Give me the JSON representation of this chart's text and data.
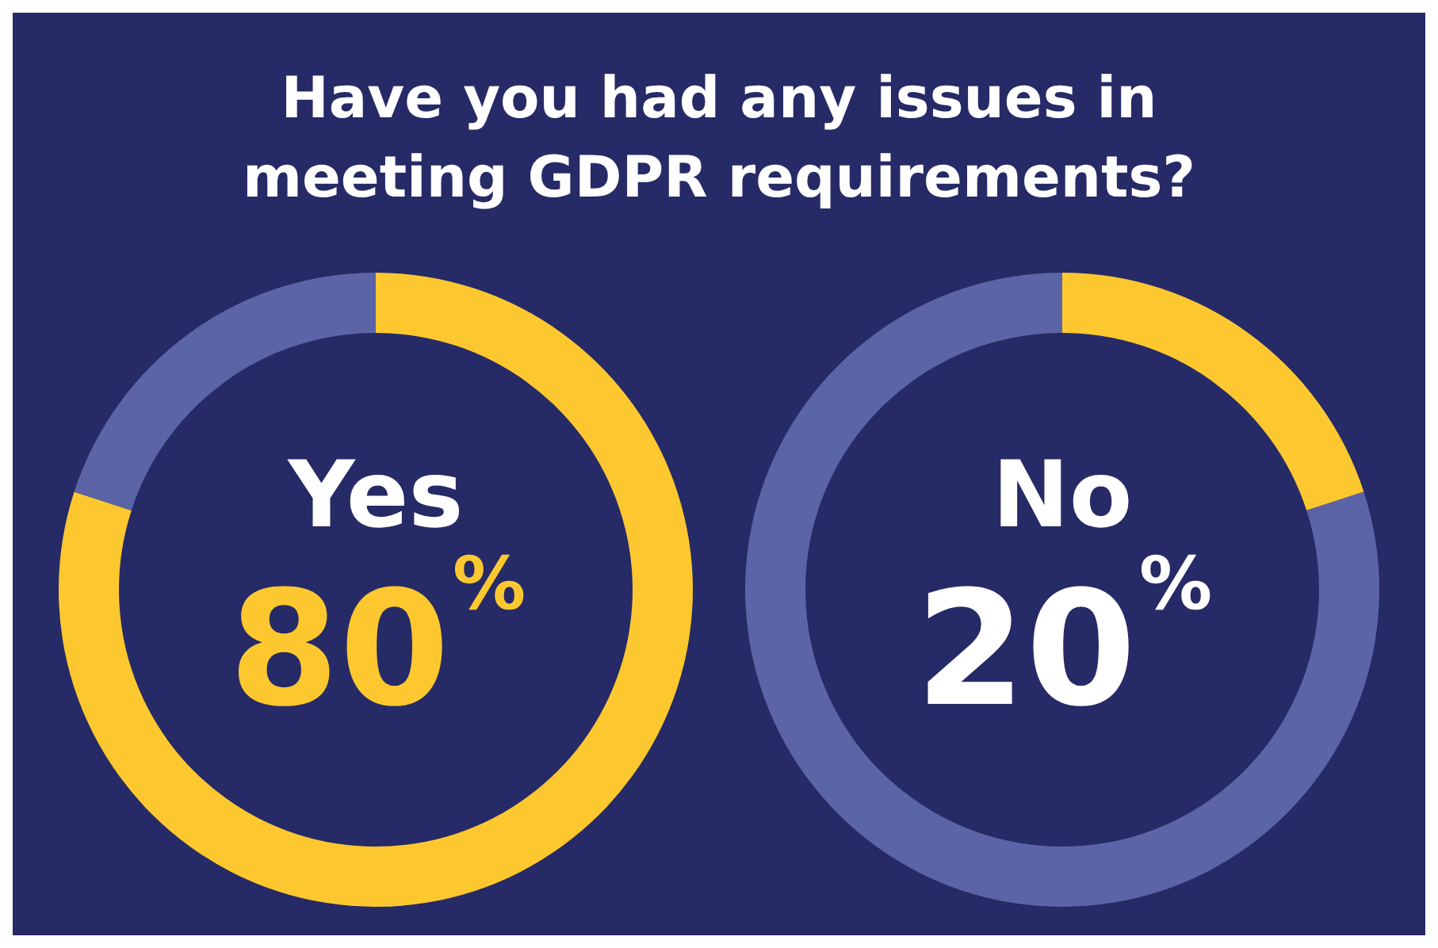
{
  "chart_data": [
    {
      "type": "donut",
      "title": "Have you had any issues in meeting GDPR requirements?",
      "categories": [
        "Yes",
        null
      ],
      "values": [
        80,
        20
      ],
      "colors": [
        "#fdc82f",
        "#5b64a6"
      ],
      "value_labels": [
        "80%",
        null
      ],
      "legend": false
    },
    {
      "type": "donut",
      "categories": [
        "No",
        null
      ],
      "values": [
        20,
        80
      ],
      "colors": [
        "#fdc82f",
        "#5b64a6"
      ],
      "value_labels": [
        "20%",
        null
      ],
      "legend": false
    }
  ]
}
